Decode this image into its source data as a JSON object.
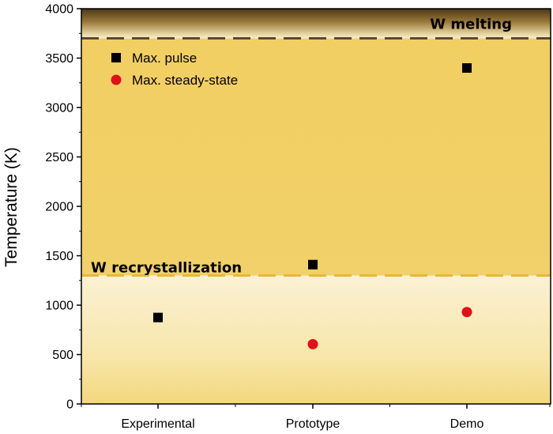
{
  "chart_data": {
    "type": "scatter",
    "title": "",
    "xlabel": "",
    "ylabel": "Temperature (K)",
    "categories": [
      "Experimental",
      "Prototype",
      "Demo"
    ],
    "ylim": [
      0,
      4000
    ],
    "yticks": [
      0,
      500,
      1000,
      1500,
      2000,
      2500,
      3000,
      3500,
      4000
    ],
    "grid": false,
    "legend_position": "top-left",
    "series": [
      {
        "name": "Max. pulse",
        "marker": "square",
        "color": "#000000",
        "values": [
          875,
          1410,
          3400
        ]
      },
      {
        "name": "Max. steady-state",
        "marker": "circle",
        "color": "#e0101a",
        "values": [
          null,
          605,
          930
        ]
      }
    ],
    "reference_lines": [
      {
        "label": "W melting",
        "y": 3700,
        "color": "#5a4a30",
        "style": "dashed"
      },
      {
        "label": "W recrystallization",
        "y": 1300,
        "color": "#e8b830",
        "style": "dashed"
      }
    ],
    "colors": {
      "band_low": "#f8ecc4",
      "band_mid": "#f0c850",
      "band_top": "#5c4520"
    }
  }
}
